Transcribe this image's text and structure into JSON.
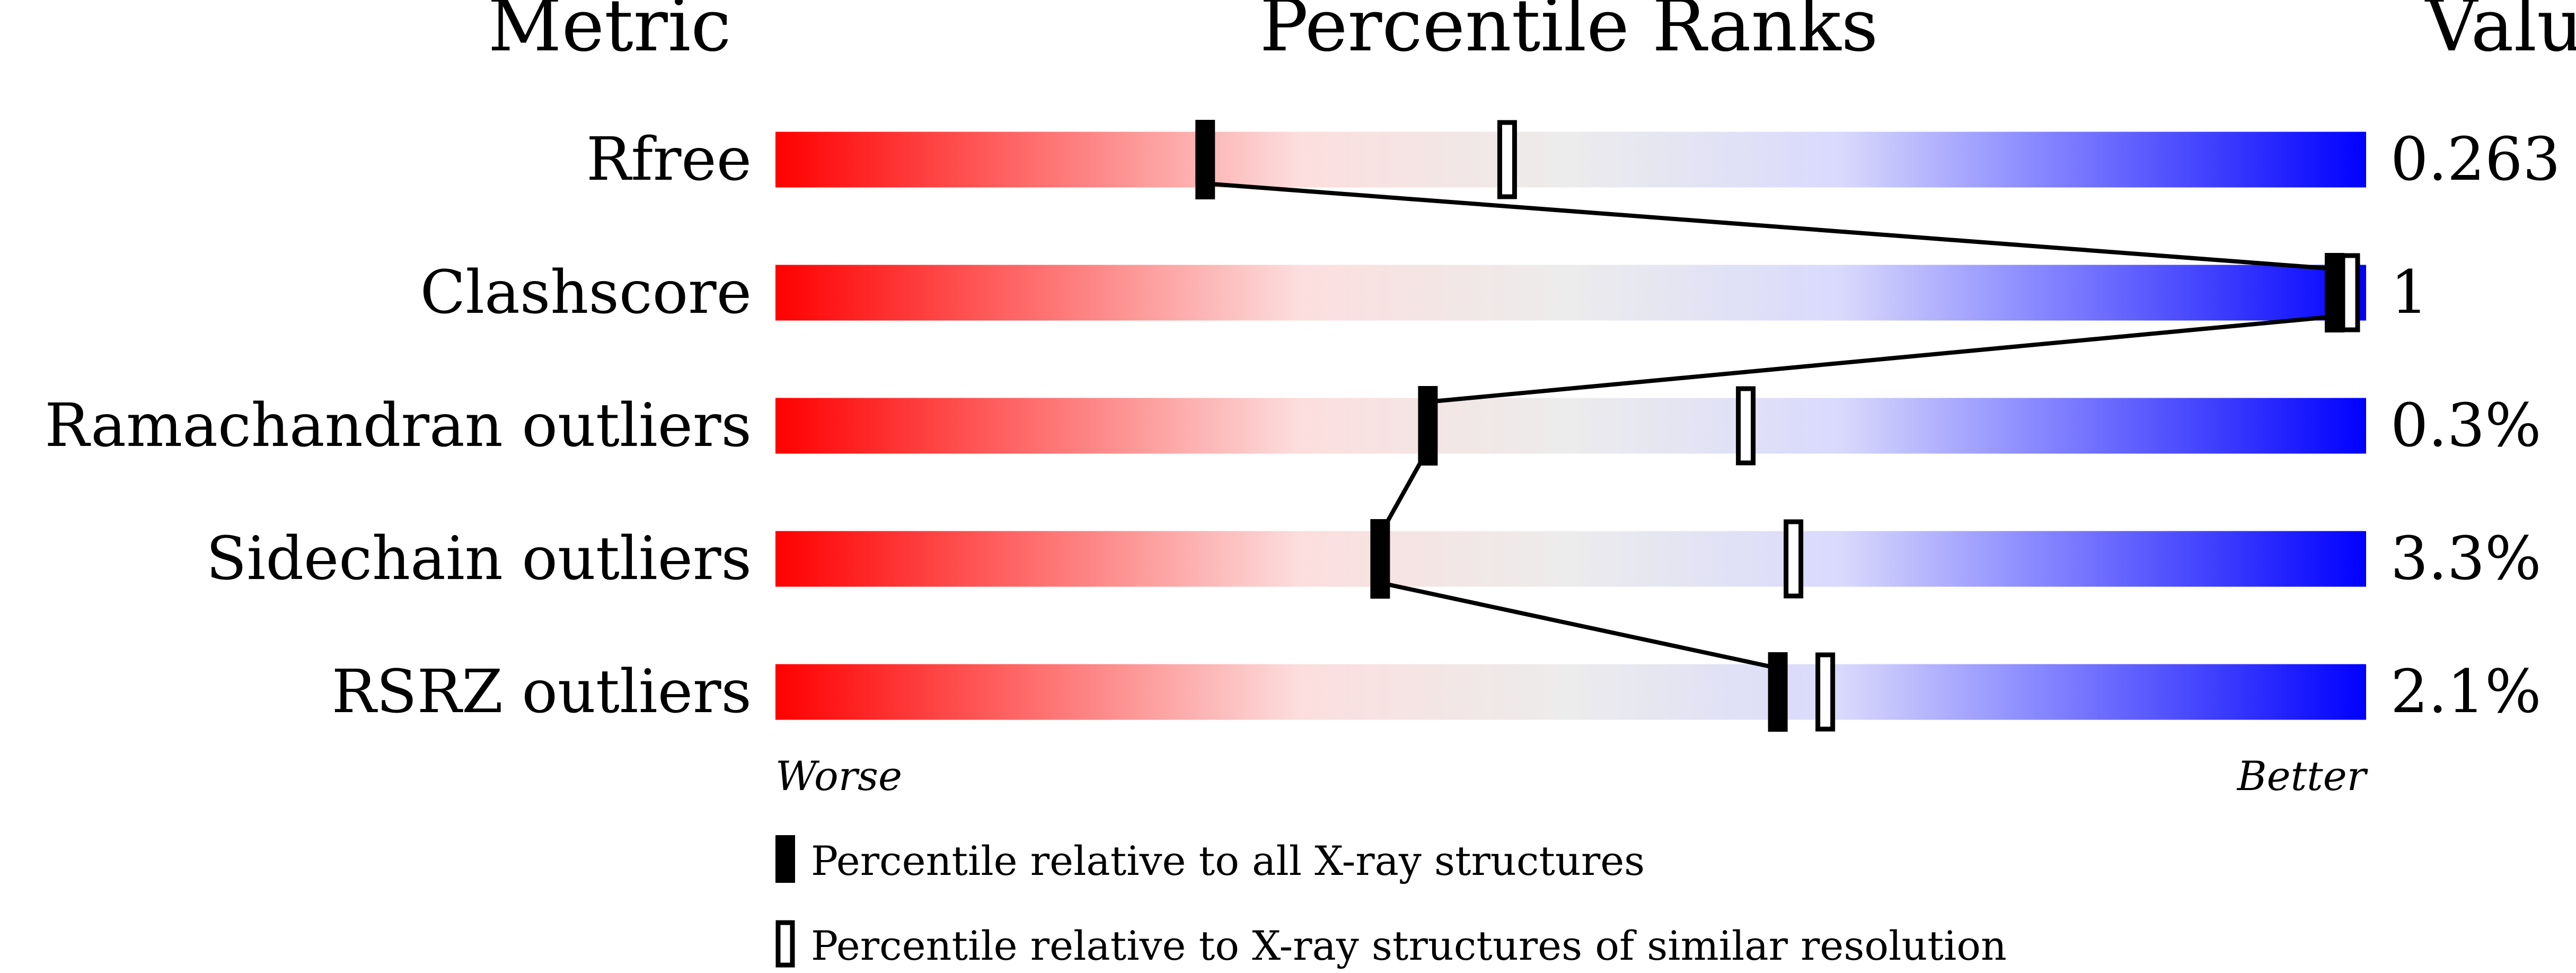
{
  "chart_data": {
    "type": "bar",
    "headers": {
      "metric": "Metric",
      "ranks": "Percentile Ranks",
      "value": "Value"
    },
    "xlim": [
      0,
      100
    ],
    "rows": [
      {
        "metric": "Rfree",
        "value": "0.263",
        "percentile_all": 27,
        "percentile_similar": 46
      },
      {
        "metric": "Clashscore",
        "value": "1",
        "percentile_all": 98,
        "percentile_similar": 99
      },
      {
        "metric": "Ramachandran outliers",
        "value": "0.3%",
        "percentile_all": 41,
        "percentile_similar": 61
      },
      {
        "metric": "Sidechain outliers",
        "value": "3.3%",
        "percentile_all": 38,
        "percentile_similar": 64
      },
      {
        "metric": "RSRZ outliers",
        "value": "2.1%",
        "percentile_all": 63,
        "percentile_similar": 66
      }
    ],
    "axis_labels": {
      "left": "Worse",
      "right": "Better"
    },
    "legend": [
      {
        "marker": "filled",
        "label": "Percentile relative to all X-ray structures"
      },
      {
        "marker": "open",
        "label": "Percentile relative to X-ray structures of similar resolution"
      }
    ],
    "colors": {
      "worse": "#ff0000",
      "mid": "#eeeeee",
      "better": "#0000ff"
    }
  }
}
